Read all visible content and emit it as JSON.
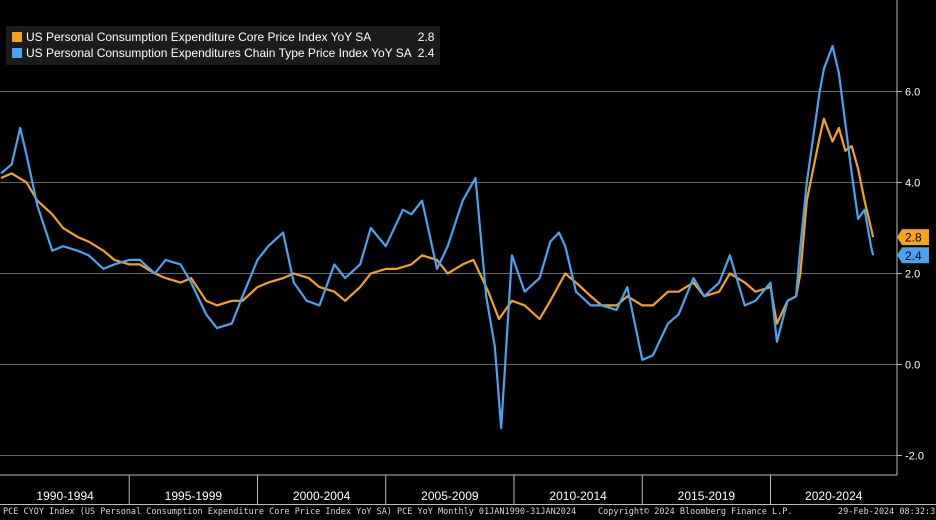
{
  "chart_data": {
    "type": "line",
    "legend_position": "top-left",
    "grid": true,
    "ylim": [
      -2.4,
      7.9
    ],
    "yticks": [
      "6.0",
      "4.0",
      "2.0",
      "0.0",
      "-2.0"
    ],
    "x_range": [
      "1990-01",
      "2024-01"
    ],
    "x_period_labels": [
      "1990-1994",
      "1995-1999",
      "2000-2004",
      "2005-2009",
      "2010-2014",
      "2015-2019",
      "2020-2024"
    ],
    "series": [
      {
        "name": "US Personal Consumption Expenditure Core Price Index YoY SA",
        "last_value": "2.8",
        "color": "#f5a31a",
        "points": [
          [
            "1990-01",
            4.1
          ],
          [
            "1990-06",
            4.2
          ],
          [
            "1991-01",
            4.0
          ],
          [
            "1991-06",
            3.6
          ],
          [
            "1992-01",
            3.3
          ],
          [
            "1992-06",
            3.0
          ],
          [
            "1993-01",
            2.8
          ],
          [
            "1993-06",
            2.7
          ],
          [
            "1994-01",
            2.5
          ],
          [
            "1994-06",
            2.3
          ],
          [
            "1995-01",
            2.2
          ],
          [
            "1995-06",
            2.2
          ],
          [
            "1996-01",
            2.0
          ],
          [
            "1996-06",
            1.9
          ],
          [
            "1997-01",
            1.8
          ],
          [
            "1997-06",
            1.9
          ],
          [
            "1998-01",
            1.4
          ],
          [
            "1998-06",
            1.3
          ],
          [
            "1999-01",
            1.4
          ],
          [
            "1999-06",
            1.4
          ],
          [
            "2000-01",
            1.7
          ],
          [
            "2000-06",
            1.8
          ],
          [
            "2001-01",
            1.9
          ],
          [
            "2001-06",
            2.0
          ],
          [
            "2002-01",
            1.9
          ],
          [
            "2002-06",
            1.7
          ],
          [
            "2003-01",
            1.6
          ],
          [
            "2003-06",
            1.4
          ],
          [
            "2004-01",
            1.7
          ],
          [
            "2004-06",
            2.0
          ],
          [
            "2005-01",
            2.1
          ],
          [
            "2005-06",
            2.1
          ],
          [
            "2006-01",
            2.2
          ],
          [
            "2006-06",
            2.4
          ],
          [
            "2007-01",
            2.3
          ],
          [
            "2007-06",
            2.0
          ],
          [
            "2008-01",
            2.2
          ],
          [
            "2008-06",
            2.3
          ],
          [
            "2009-01",
            1.6
          ],
          [
            "2009-06",
            1.0
          ],
          [
            "2009-12",
            1.4
          ],
          [
            "2010-06",
            1.3
          ],
          [
            "2011-01",
            1.0
          ],
          [
            "2011-06",
            1.4
          ],
          [
            "2012-01",
            2.0
          ],
          [
            "2012-06",
            1.8
          ],
          [
            "2013-01",
            1.5
          ],
          [
            "2013-06",
            1.3
          ],
          [
            "2014-01",
            1.3
          ],
          [
            "2014-06",
            1.5
          ],
          [
            "2015-01",
            1.3
          ],
          [
            "2015-06",
            1.3
          ],
          [
            "2016-01",
            1.6
          ],
          [
            "2016-06",
            1.6
          ],
          [
            "2017-01",
            1.8
          ],
          [
            "2017-06",
            1.5
          ],
          [
            "2018-01",
            1.6
          ],
          [
            "2018-06",
            2.0
          ],
          [
            "2019-01",
            1.8
          ],
          [
            "2019-06",
            1.6
          ],
          [
            "2020-01",
            1.7
          ],
          [
            "2020-04",
            0.9
          ],
          [
            "2020-09",
            1.4
          ],
          [
            "2021-01",
            1.5
          ],
          [
            "2021-03",
            2.0
          ],
          [
            "2021-06",
            3.6
          ],
          [
            "2021-12",
            5.0
          ],
          [
            "2022-02",
            5.4
          ],
          [
            "2022-06",
            4.9
          ],
          [
            "2022-09",
            5.2
          ],
          [
            "2022-12",
            4.7
          ],
          [
            "2023-03",
            4.8
          ],
          [
            "2023-06",
            4.3
          ],
          [
            "2023-09",
            3.6
          ],
          [
            "2023-12",
            3.0
          ],
          [
            "2024-01",
            2.8
          ]
        ]
      },
      {
        "name": "US Personal Consumption Expenditures Chain Type Price Index YoY SA",
        "last_value": "2.4",
        "color": "#4aa3f0",
        "points": [
          [
            "1990-01",
            4.2
          ],
          [
            "1990-06",
            4.4
          ],
          [
            "1990-10",
            5.2
          ],
          [
            "1991-01",
            4.6
          ],
          [
            "1991-06",
            3.5
          ],
          [
            "1992-01",
            2.5
          ],
          [
            "1992-06",
            2.6
          ],
          [
            "1993-01",
            2.5
          ],
          [
            "1993-06",
            2.4
          ],
          [
            "1994-01",
            2.1
          ],
          [
            "1994-06",
            2.2
          ],
          [
            "1995-01",
            2.3
          ],
          [
            "1995-06",
            2.3
          ],
          [
            "1996-01",
            2.0
          ],
          [
            "1996-06",
            2.3
          ],
          [
            "1997-01",
            2.2
          ],
          [
            "1997-06",
            1.8
          ],
          [
            "1998-01",
            1.1
          ],
          [
            "1998-06",
            0.8
          ],
          [
            "1999-01",
            0.9
          ],
          [
            "1999-06",
            1.5
          ],
          [
            "2000-01",
            2.3
          ],
          [
            "2000-06",
            2.6
          ],
          [
            "2001-01",
            2.9
          ],
          [
            "2001-06",
            1.8
          ],
          [
            "2001-12",
            1.4
          ],
          [
            "2002-06",
            1.3
          ],
          [
            "2003-01",
            2.2
          ],
          [
            "2003-06",
            1.9
          ],
          [
            "2004-01",
            2.2
          ],
          [
            "2004-06",
            3.0
          ],
          [
            "2005-01",
            2.6
          ],
          [
            "2005-09",
            3.4
          ],
          [
            "2006-01",
            3.3
          ],
          [
            "2006-06",
            3.6
          ],
          [
            "2007-01",
            2.1
          ],
          [
            "2007-06",
            2.6
          ],
          [
            "2008-01",
            3.6
          ],
          [
            "2008-07",
            4.1
          ],
          [
            "2008-12",
            1.5
          ],
          [
            "2009-04",
            0.4
          ],
          [
            "2009-07",
            -1.4
          ],
          [
            "2009-12",
            2.4
          ],
          [
            "2010-06",
            1.6
          ],
          [
            "2011-01",
            1.9
          ],
          [
            "2011-06",
            2.7
          ],
          [
            "2011-10",
            2.9
          ],
          [
            "2012-01",
            2.6
          ],
          [
            "2012-06",
            1.6
          ],
          [
            "2013-01",
            1.3
          ],
          [
            "2013-06",
            1.3
          ],
          [
            "2014-01",
            1.2
          ],
          [
            "2014-06",
            1.7
          ],
          [
            "2015-01",
            0.1
          ],
          [
            "2015-06",
            0.2
          ],
          [
            "2016-01",
            0.9
          ],
          [
            "2016-06",
            1.1
          ],
          [
            "2017-01",
            1.9
          ],
          [
            "2017-06",
            1.5
          ],
          [
            "2018-01",
            1.8
          ],
          [
            "2018-06",
            2.4
          ],
          [
            "2019-01",
            1.3
          ],
          [
            "2019-06",
            1.4
          ],
          [
            "2020-01",
            1.8
          ],
          [
            "2020-04",
            0.5
          ],
          [
            "2020-09",
            1.4
          ],
          [
            "2021-01",
            1.5
          ],
          [
            "2021-03",
            2.6
          ],
          [
            "2021-06",
            4.0
          ],
          [
            "2021-12",
            6.0
          ],
          [
            "2022-02",
            6.5
          ],
          [
            "2022-06",
            7.0
          ],
          [
            "2022-09",
            6.4
          ],
          [
            "2022-12",
            5.3
          ],
          [
            "2023-03",
            4.2
          ],
          [
            "2023-06",
            3.2
          ],
          [
            "2023-09",
            3.4
          ],
          [
            "2023-12",
            2.6
          ],
          [
            "2024-01",
            2.4
          ]
        ]
      }
    ]
  },
  "footer": {
    "left": "PCE CYOY Index (US Personal Consumption Expenditure Core Price Index YoY SA) PCE YoY  Monthly 01JAN1990-31JAN2024",
    "center": "Copyright© 2024 Bloomberg Finance L.P.",
    "right": "29-Feb-2024 08:32:35"
  }
}
